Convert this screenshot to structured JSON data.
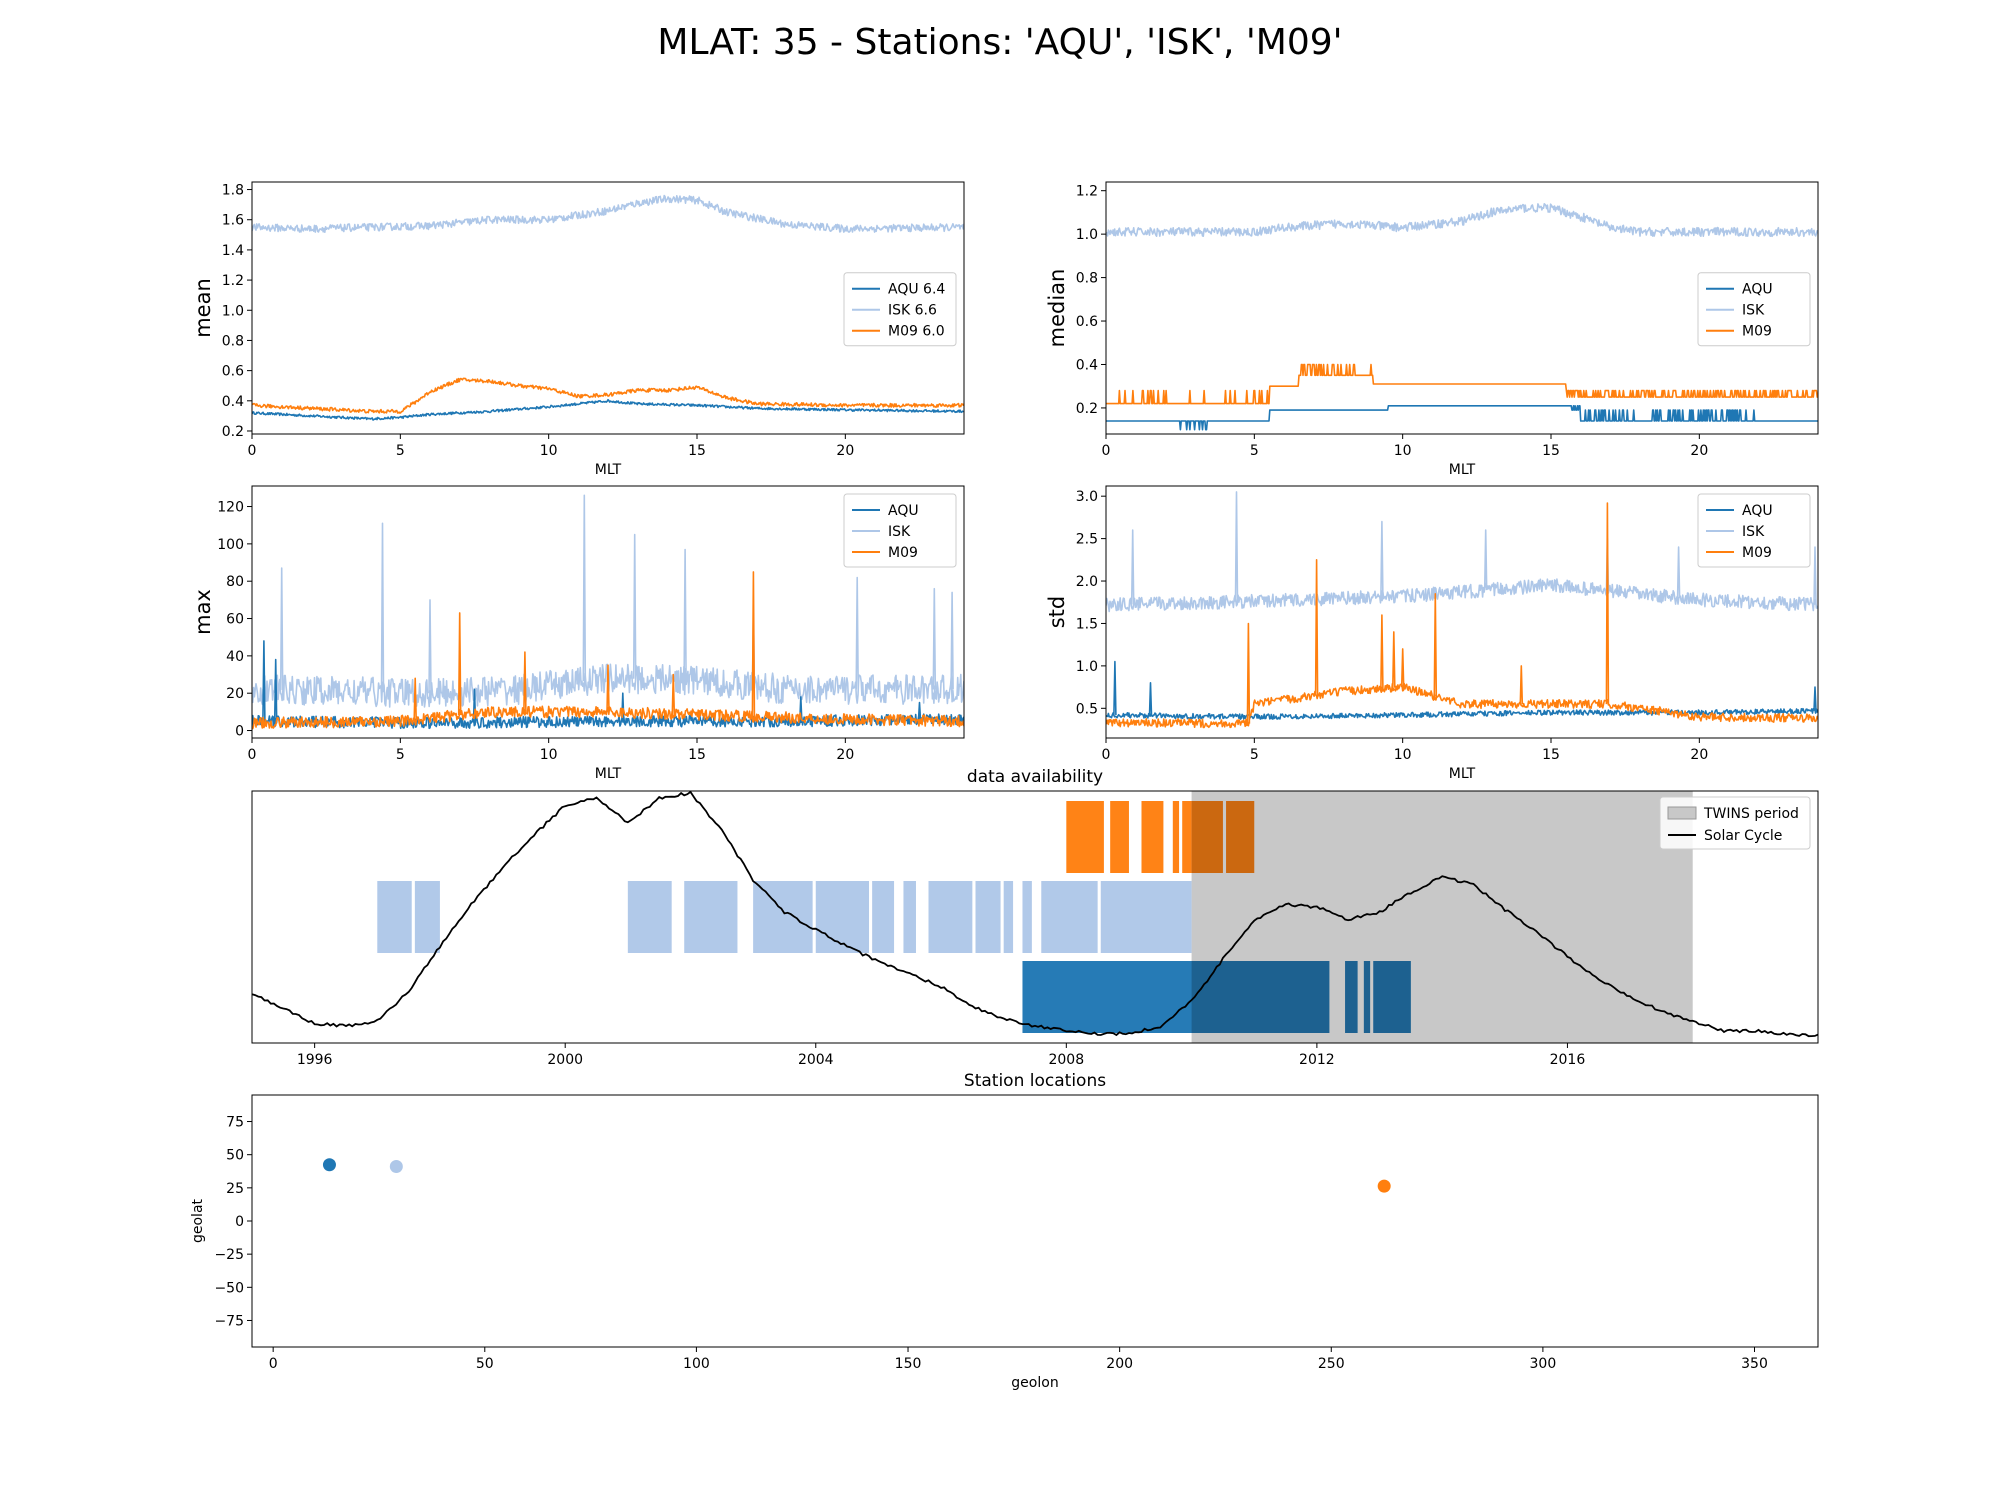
{
  "suptitle": "MLAT: 35 - Stations: 'AQU', 'ISK', 'M09'",
  "colors": {
    "AQU": "#1f77b4",
    "ISK": "#aec7e8",
    "M09": "#ff7f0e",
    "twins": "#c8c8c8",
    "solar": "#000000"
  },
  "chart_data": [
    {
      "type": "line",
      "panel": "mean",
      "ylabel": "mean",
      "xlabel": "MLT",
      "xlim": [
        0,
        24
      ],
      "ylim": [
        0.18,
        1.85
      ],
      "xticks": [
        0,
        5,
        10,
        15,
        20
      ],
      "yticks": [
        0.2,
        0.4,
        0.6,
        0.8,
        1.0,
        1.2,
        1.4,
        1.6,
        1.8
      ],
      "legend_position": "center-right",
      "series": [
        {
          "name": "AQU 6.4",
          "station": "AQU",
          "noise": 0.008,
          "x": [
            0,
            2,
            4,
            5,
            6,
            8,
            10,
            11,
            12,
            13,
            15,
            17,
            20,
            24
          ],
          "y": [
            0.32,
            0.3,
            0.28,
            0.29,
            0.31,
            0.33,
            0.36,
            0.38,
            0.4,
            0.38,
            0.37,
            0.35,
            0.34,
            0.33
          ]
        },
        {
          "name": "ISK 6.6",
          "station": "ISK",
          "noise": 0.025,
          "x": [
            0,
            2,
            4,
            6,
            8,
            10,
            12,
            13,
            14,
            15,
            16,
            18,
            20,
            24
          ],
          "y": [
            1.55,
            1.54,
            1.55,
            1.56,
            1.6,
            1.6,
            1.66,
            1.71,
            1.74,
            1.73,
            1.65,
            1.57,
            1.54,
            1.55
          ]
        },
        {
          "name": "M09 6.0",
          "station": "M09",
          "noise": 0.012,
          "x": [
            0,
            2,
            4,
            5,
            5.5,
            6,
            7,
            8,
            9,
            10,
            11,
            12,
            13,
            14,
            15,
            16,
            17,
            20,
            24
          ],
          "y": [
            0.37,
            0.35,
            0.33,
            0.33,
            0.39,
            0.46,
            0.54,
            0.53,
            0.5,
            0.48,
            0.43,
            0.44,
            0.47,
            0.47,
            0.49,
            0.42,
            0.38,
            0.37,
            0.37
          ]
        }
      ]
    },
    {
      "type": "line",
      "panel": "median",
      "ylabel": "median",
      "xlabel": "MLT",
      "xlim": [
        0,
        24
      ],
      "ylim": [
        0.08,
        1.24
      ],
      "xticks": [
        0,
        5,
        10,
        15,
        20
      ],
      "yticks": [
        0.2,
        0.4,
        0.6,
        0.8,
        1.0,
        1.2
      ],
      "legend_position": "center-right",
      "series": [
        {
          "name": "AQU",
          "station": "AQU",
          "style": "step",
          "x": [
            0,
            5.5,
            9.5,
            16,
            24
          ],
          "y": [
            0.14,
            0.19,
            0.21,
            0.14,
            0.14
          ]
        },
        {
          "name": "ISK",
          "station": "ISK",
          "noise": 0.02,
          "x": [
            0,
            2,
            4,
            5,
            6,
            8,
            10,
            12,
            13,
            14,
            15,
            16,
            17,
            18,
            20,
            24
          ],
          "y": [
            1.01,
            1.01,
            1.01,
            1.01,
            1.03,
            1.05,
            1.03,
            1.06,
            1.1,
            1.12,
            1.12,
            1.08,
            1.03,
            1.01,
            1.01,
            1.01
          ]
        },
        {
          "name": "M09",
          "station": "M09",
          "style": "step",
          "x": [
            0,
            5.5,
            6.5,
            9,
            11,
            15.5,
            24
          ],
          "y": [
            0.22,
            0.3,
            0.35,
            0.31,
            0.31,
            0.25,
            0.25
          ]
        }
      ]
    },
    {
      "type": "line",
      "panel": "max",
      "ylabel": "max",
      "xlabel": "MLT",
      "xlim": [
        0,
        24
      ],
      "ylim": [
        -4,
        131
      ],
      "xticks": [
        0,
        5,
        10,
        15,
        20
      ],
      "yticks": [
        0,
        20,
        40,
        60,
        80,
        100,
        120
      ],
      "legend_position": "top-right",
      "series": [
        {
          "name": "AQU",
          "station": "AQU",
          "noise": 3,
          "spikes": [
            [
              0.4,
              48
            ],
            [
              0.8,
              38
            ],
            [
              7.5,
              22
            ],
            [
              12.5,
              20
            ],
            [
              18.5,
              18
            ],
            [
              22.5,
              15
            ]
          ],
          "x": [
            0,
            6,
            12,
            18,
            24
          ],
          "y": [
            5,
            4,
            5,
            5,
            6
          ]
        },
        {
          "name": "ISK",
          "station": "ISK",
          "noise": 8,
          "spikes": [
            [
              1.0,
              87
            ],
            [
              4.4,
              111
            ],
            [
              6.0,
              70
            ],
            [
              11.2,
              126
            ],
            [
              12.9,
              105
            ],
            [
              14.6,
              97
            ],
            [
              16.9,
              63
            ],
            [
              20.4,
              82
            ],
            [
              23.0,
              76
            ],
            [
              23.6,
              74
            ]
          ],
          "x": [
            0,
            6,
            9,
            12,
            15,
            18,
            24
          ],
          "y": [
            22,
            20,
            22,
            28,
            27,
            22,
            22
          ]
        },
        {
          "name": "M09",
          "station": "M09",
          "noise": 3,
          "spikes": [
            [
              7.0,
              63
            ],
            [
              9.2,
              42
            ],
            [
              16.9,
              85
            ],
            [
              12.0,
              35
            ],
            [
              14.2,
              30
            ],
            [
              5.5,
              28
            ]
          ],
          "x": [
            0,
            5,
            8,
            12,
            16,
            20,
            24
          ],
          "y": [
            4,
            5,
            10,
            10,
            8,
            6,
            5
          ]
        }
      ]
    },
    {
      "type": "line",
      "panel": "std",
      "ylabel": "std",
      "xlabel": "MLT",
      "xlim": [
        0,
        24
      ],
      "ylim": [
        0.15,
        3.12
      ],
      "xticks": [
        0,
        5,
        10,
        15,
        20
      ],
      "yticks": [
        0.5,
        1.0,
        1.5,
        2.0,
        2.5,
        3.0
      ],
      "legend_position": "top-right",
      "series": [
        {
          "name": "AQU",
          "station": "AQU",
          "noise": 0.03,
          "spikes": [
            [
              0.3,
              1.05
            ],
            [
              1.5,
              0.8
            ],
            [
              23.9,
              0.75
            ]
          ],
          "x": [
            0,
            5,
            10,
            15,
            20,
            24
          ],
          "y": [
            0.42,
            0.4,
            0.42,
            0.45,
            0.45,
            0.47
          ]
        },
        {
          "name": "ISK",
          "station": "ISK",
          "noise": 0.08,
          "spikes": [
            [
              0.9,
              2.6
            ],
            [
              4.4,
              3.05
            ],
            [
              9.3,
              2.7
            ],
            [
              12.8,
              2.6
            ],
            [
              16.9,
              2.5
            ],
            [
              19.3,
              2.4
            ],
            [
              23.9,
              2.4
            ]
          ],
          "x": [
            0,
            5,
            10,
            15,
            20,
            24
          ],
          "y": [
            1.72,
            1.76,
            1.82,
            1.95,
            1.78,
            1.72
          ]
        },
        {
          "name": "M09",
          "station": "M09",
          "noise": 0.05,
          "spikes": [
            [
              4.8,
              1.5
            ],
            [
              7.1,
              2.25
            ],
            [
              9.3,
              1.6
            ],
            [
              9.7,
              1.4
            ],
            [
              10.0,
              1.2
            ],
            [
              11.1,
              1.85
            ],
            [
              16.9,
              2.92
            ],
            [
              14.0,
              1.0
            ]
          ],
          "x": [
            0,
            4.8,
            5,
            8,
            10,
            12,
            17,
            20,
            24
          ],
          "y": [
            0.33,
            0.32,
            0.55,
            0.7,
            0.75,
            0.55,
            0.55,
            0.4,
            0.38
          ]
        }
      ]
    },
    {
      "type": "timeline",
      "panel": "availability",
      "title": "data availability",
      "xlim": [
        1995.0,
        2020.0
      ],
      "xticks": [
        1996,
        2000,
        2004,
        2008,
        2012,
        2016
      ],
      "legend_position": "top-right",
      "twins_period": {
        "name": "TWINS period",
        "start": 2010.0,
        "end": 2018.0
      },
      "solar_cycle": {
        "name": "Solar Cycle",
        "x": [
          1995.0,
          1995.5,
          1996.0,
          1996.5,
          1997.0,
          1997.5,
          1998.0,
          1998.5,
          1999.0,
          1999.5,
          2000.0,
          2000.5,
          2001.0,
          2001.5,
          2002.0,
          2002.5,
          2003.0,
          2003.5,
          2004.0,
          2004.5,
          2005.0,
          2005.5,
          2006.0,
          2006.5,
          2007.0,
          2007.5,
          2008.0,
          2008.5,
          2009.0,
          2009.5,
          2010.0,
          2010.5,
          2011.0,
          2011.5,
          2012.0,
          2012.5,
          2013.0,
          2013.5,
          2014.0,
          2014.5,
          2015.0,
          2015.5,
          2016.0,
          2016.5,
          2017.0,
          2017.5,
          2018.0,
          2018.5,
          2019.0,
          2019.5,
          2020.0
        ],
        "y": [
          0.19,
          0.13,
          0.07,
          0.06,
          0.08,
          0.2,
          0.38,
          0.55,
          0.7,
          0.83,
          0.95,
          0.98,
          0.88,
          0.98,
          1.0,
          0.85,
          0.65,
          0.52,
          0.45,
          0.38,
          0.32,
          0.27,
          0.22,
          0.14,
          0.09,
          0.06,
          0.04,
          0.03,
          0.03,
          0.06,
          0.16,
          0.33,
          0.49,
          0.55,
          0.54,
          0.49,
          0.52,
          0.6,
          0.66,
          0.63,
          0.53,
          0.44,
          0.34,
          0.25,
          0.18,
          0.12,
          0.08,
          0.04,
          0.04,
          0.03,
          0.02
        ]
      },
      "stations": [
        {
          "station": "M09",
          "row": 3,
          "intervals": [
            [
              2008.0,
              2008.6
            ],
            [
              2008.7,
              2009.0
            ],
            [
              2009.2,
              2009.55
            ],
            [
              2009.7,
              2009.8
            ],
            [
              2009.85,
              2010.0
            ],
            [
              2010.0,
              2010.5
            ],
            [
              2010.55,
              2011.0
            ]
          ]
        },
        {
          "station": "ISK",
          "row": 2,
          "intervals": [
            [
              1997.0,
              1997.55
            ],
            [
              1997.6,
              1998.0
            ],
            [
              2001.0,
              2001.7
            ],
            [
              2001.9,
              2002.75
            ],
            [
              2003.0,
              2003.95
            ],
            [
              2004.0,
              2004.85
            ],
            [
              2004.9,
              2005.25
            ],
            [
              2005.4,
              2005.6
            ],
            [
              2005.8,
              2006.5
            ],
            [
              2006.55,
              2006.95
            ],
            [
              2007.0,
              2007.15
            ],
            [
              2007.3,
              2007.45
            ],
            [
              2007.6,
              2008.5
            ],
            [
              2008.55,
              2010.0
            ]
          ]
        },
        {
          "station": "AQU",
          "row": 1,
          "intervals": [
            [
              2007.3,
              2012.2
            ],
            [
              2012.45,
              2012.65
            ],
            [
              2012.75,
              2012.85
            ],
            [
              2012.9,
              2013.5
            ]
          ]
        }
      ]
    },
    {
      "type": "scatter",
      "panel": "locations",
      "title": "Station locations",
      "xlabel": "geolon",
      "ylabel": "geolat",
      "xlim": [
        -5,
        365
      ],
      "ylim": [
        -95,
        95
      ],
      "xticks": [
        0,
        50,
        100,
        150,
        200,
        250,
        300,
        350
      ],
      "yticks": [
        -75,
        -50,
        -25,
        0,
        25,
        50,
        75
      ],
      "points": [
        {
          "station": "AQU",
          "x": 13.3,
          "y": 42.4
        },
        {
          "station": "ISK",
          "x": 29.1,
          "y": 41.1
        },
        {
          "station": "M09",
          "x": 262.5,
          "y": 26.3
        }
      ]
    }
  ]
}
